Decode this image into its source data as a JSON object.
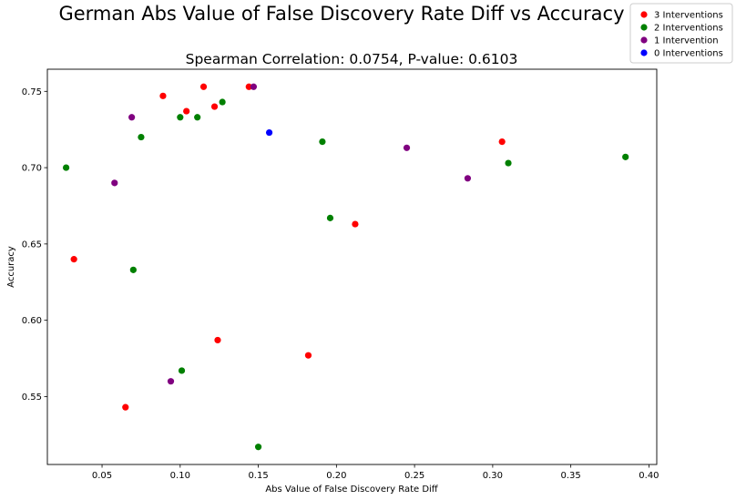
{
  "chart_data": {
    "type": "scatter",
    "title": "German Abs Value of False Discovery Rate Diff vs Accuracy",
    "subtitle": "Spearman Correlation: 0.0754, P-value: 0.6103",
    "xlabel": "Abs Value of False Discovery Rate Diff",
    "ylabel": "Accuracy",
    "xlim": [
      0.015,
      0.405
    ],
    "ylim": [
      0.5055,
      0.7645
    ],
    "xticks": [
      0.05,
      0.1,
      0.15,
      0.2,
      0.25,
      0.3,
      0.35,
      0.4
    ],
    "xtick_labels": [
      "0.05",
      "0.10",
      "0.15",
      "0.20",
      "0.25",
      "0.30",
      "0.35",
      "0.40"
    ],
    "yticks": [
      0.55,
      0.6,
      0.65,
      0.7,
      0.75
    ],
    "ytick_labels": [
      "0.55",
      "0.60",
      "0.65",
      "0.70",
      "0.75"
    ],
    "grid": false,
    "legend_position": "top-right",
    "series": [
      {
        "name": "3 Interventions",
        "color": "#ff0000",
        "points": [
          [
            0.032,
            0.64
          ],
          [
            0.065,
            0.543
          ],
          [
            0.089,
            0.747
          ],
          [
            0.104,
            0.737
          ],
          [
            0.115,
            0.753
          ],
          [
            0.122,
            0.74
          ],
          [
            0.124,
            0.587
          ],
          [
            0.144,
            0.753
          ],
          [
            0.182,
            0.577
          ],
          [
            0.212,
            0.663
          ],
          [
            0.306,
            0.717
          ]
        ]
      },
      {
        "name": "2 Interventions",
        "color": "#008000",
        "points": [
          [
            0.027,
            0.7
          ],
          [
            0.07,
            0.633
          ],
          [
            0.075,
            0.72
          ],
          [
            0.1,
            0.733
          ],
          [
            0.101,
            0.567
          ],
          [
            0.111,
            0.733
          ],
          [
            0.127,
            0.743
          ],
          [
            0.15,
            0.517
          ],
          [
            0.191,
            0.717
          ],
          [
            0.196,
            0.667
          ],
          [
            0.31,
            0.703
          ],
          [
            0.385,
            0.707
          ]
        ]
      },
      {
        "name": "1 Intervention",
        "color": "#800080",
        "points": [
          [
            0.058,
            0.69
          ],
          [
            0.069,
            0.733
          ],
          [
            0.094,
            0.56
          ],
          [
            0.147,
            0.753
          ],
          [
            0.245,
            0.713
          ],
          [
            0.284,
            0.693
          ]
        ]
      },
      {
        "name": "0 Interventions",
        "color": "#0000ff",
        "points": [
          [
            0.157,
            0.723
          ]
        ]
      }
    ]
  }
}
